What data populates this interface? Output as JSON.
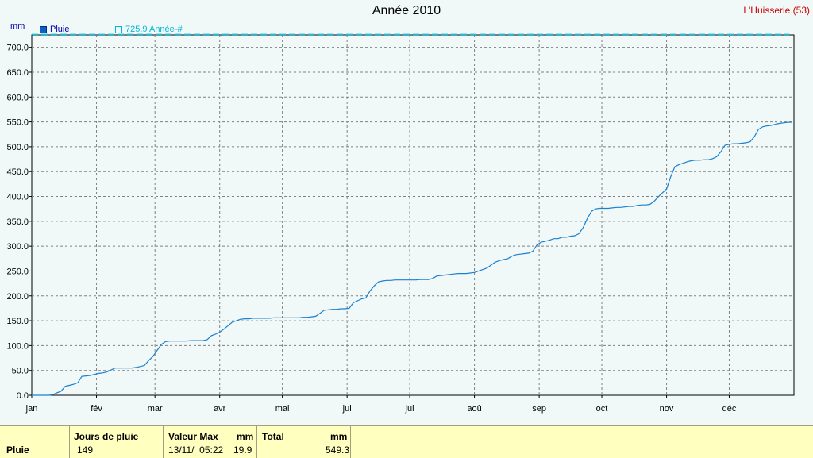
{
  "title": "Année 2010",
  "station": "L'Huisserie (53)",
  "unit": "mm",
  "legend": {
    "series_label": "Pluie",
    "reference_label": "725.9 Année-#"
  },
  "colors": {
    "series": "#1a80d0",
    "reference": "#00c8e8",
    "grid": "#808080"
  },
  "chart_data": {
    "type": "line",
    "title": "Année 2010",
    "ylabel": "mm",
    "ylim": [
      0,
      725
    ],
    "yticks": [
      "0.0",
      "50.0",
      "100.0",
      "150.0",
      "200.0",
      "250.0",
      "300.0",
      "350.0",
      "400.0",
      "450.0",
      "500.0",
      "550.0",
      "600.0",
      "650.0",
      "700.0"
    ],
    "xticks": [
      "jan",
      "fév",
      "mar",
      "avr",
      "mai",
      "jui",
      "jui",
      "aoû",
      "sep",
      "oct",
      "nov",
      "déc"
    ],
    "reference_line": 725.9,
    "series": [
      {
        "name": "Pluie",
        "x": [
          0,
          2,
          4,
          6,
          8,
          10,
          12,
          14,
          16,
          18,
          20,
          22,
          24,
          26,
          28,
          30,
          32,
          34,
          36,
          38,
          40,
          42,
          44,
          46,
          48,
          50,
          52,
          54,
          56,
          58,
          60,
          62,
          64,
          66,
          68,
          70,
          72,
          74,
          76,
          78,
          80,
          82,
          84,
          86,
          88,
          90,
          92,
          94,
          96,
          98,
          100,
          102,
          104,
          106,
          108,
          110,
          112,
          114,
          116,
          118,
          120,
          122,
          124,
          126,
          128,
          130,
          132,
          134,
          136,
          138,
          140,
          142,
          144,
          146,
          148,
          150,
          152,
          154,
          156,
          158,
          160,
          162,
          164,
          166,
          168,
          170,
          172,
          174,
          176,
          178,
          180,
          182,
          184,
          186,
          188,
          190,
          192,
          194,
          196,
          198,
          200,
          202,
          204,
          206,
          208,
          210,
          212,
          214,
          216,
          218,
          220,
          222,
          224,
          226,
          228,
          230,
          232,
          234,
          236,
          238,
          240,
          242,
          244,
          246,
          248,
          250,
          252,
          254,
          256,
          258,
          260,
          262,
          264,
          266,
          268,
          270,
          272,
          274,
          276,
          278,
          280,
          282,
          284,
          286,
          288,
          290,
          292,
          294,
          296,
          298,
          300,
          302,
          304,
          306,
          308,
          310,
          312,
          314,
          316,
          318,
          320,
          322,
          324,
          326,
          328,
          330,
          332,
          334,
          336,
          338,
          340,
          342,
          344,
          346,
          348,
          350,
          352,
          354,
          356,
          358,
          360,
          362,
          364
        ],
        "values": [
          0,
          0,
          0,
          0,
          0,
          1,
          5,
          8,
          18,
          20,
          22,
          25,
          38,
          39,
          40,
          42,
          44,
          45,
          47,
          51,
          55,
          55,
          55,
          55,
          55,
          56,
          58,
          60,
          70,
          78,
          90,
          102,
          108,
          109,
          109,
          109,
          109,
          109,
          110,
          110,
          110,
          110,
          112,
          120,
          123,
          127,
          133,
          140,
          147,
          150,
          153,
          154,
          154,
          155,
          155,
          155,
          155,
          155,
          156,
          156,
          156,
          156,
          156,
          156,
          156,
          157,
          157,
          158,
          159,
          165,
          171,
          172,
          173,
          173,
          174,
          174,
          175,
          186,
          190,
          194,
          196,
          210,
          220,
          228,
          230,
          231,
          231,
          232,
          232,
          232,
          232,
          232,
          232,
          233,
          233,
          233,
          235,
          240,
          241,
          242,
          243,
          244,
          245,
          245,
          245,
          246,
          247,
          250,
          253,
          256,
          262,
          268,
          271,
          273,
          275,
          280,
          283,
          284,
          285,
          286,
          290,
          303,
          308,
          310,
          312,
          315,
          315,
          318,
          318,
          320,
          321,
          325,
          337,
          355,
          370,
          375,
          376,
          376,
          376,
          377,
          378,
          378,
          379,
          380,
          380,
          382,
          383,
          383,
          384,
          390,
          399,
          407,
          415,
          440,
          460,
          464,
          467,
          470,
          472,
          473,
          473,
          474,
          474,
          476,
          480,
          490,
          503,
          505,
          506,
          506,
          507,
          508,
          510,
          520,
          535,
          540,
          542,
          543,
          545,
          547,
          548,
          549,
          549.3
        ]
      }
    ]
  },
  "summary": {
    "row_label": "Pluie",
    "rain_days_header": "Jours de pluie",
    "rain_days_value": "149",
    "max_header": "Valeur Max",
    "max_unit": "mm",
    "max_date": "13/11/  05:22",
    "max_value": "19.9",
    "total_header": "Total",
    "total_unit": "mm",
    "total_value": "549.3"
  }
}
